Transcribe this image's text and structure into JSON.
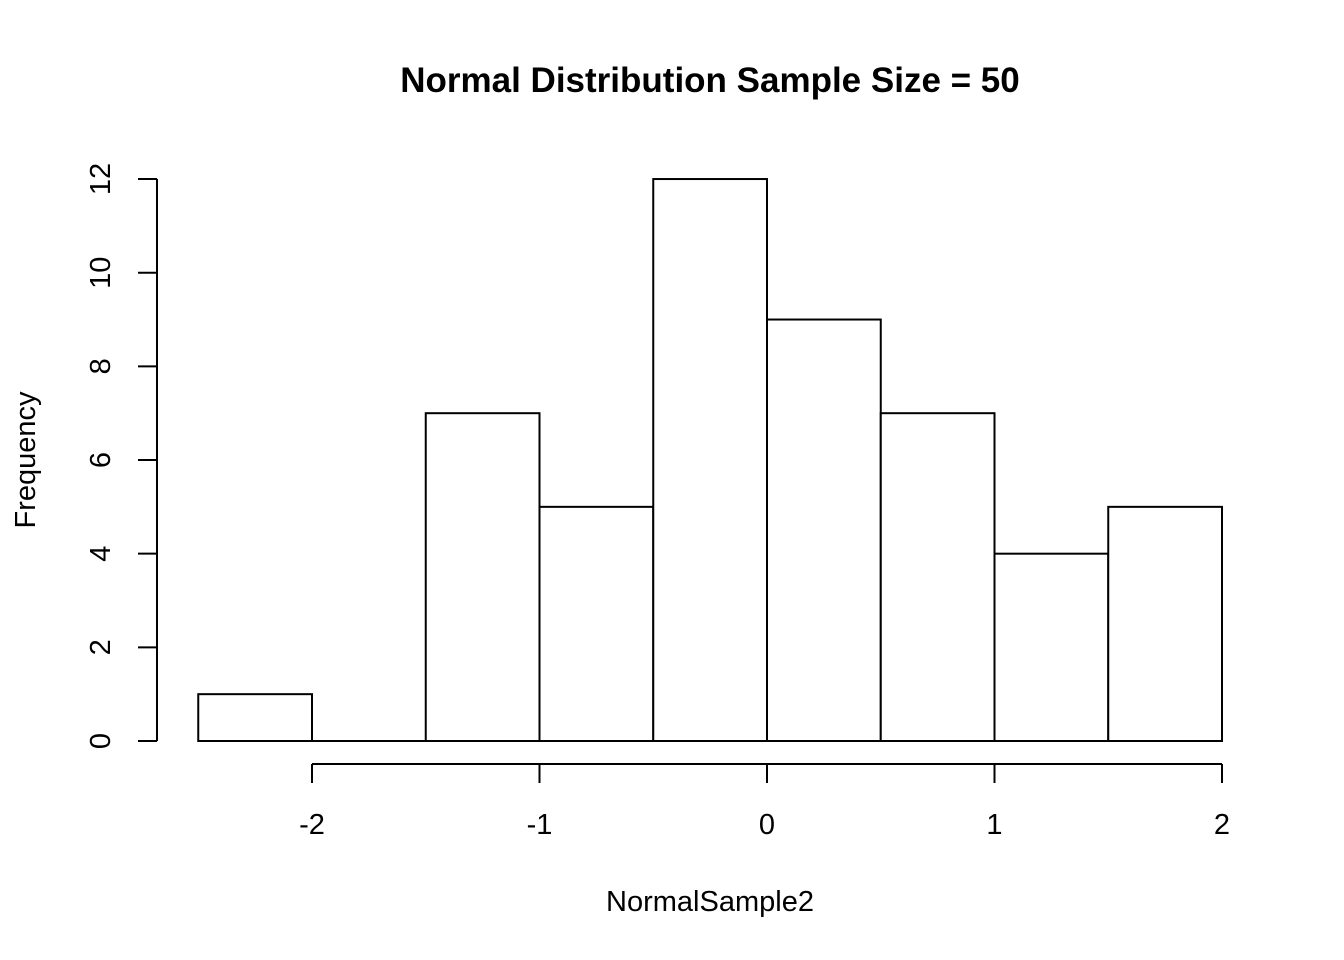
{
  "chart_data": {
    "type": "bar",
    "title": "Normal Distribution Sample Size =  50",
    "xlabel": "NormalSample2",
    "ylabel": "Frequency",
    "bins": [
      {
        "from": -2.5,
        "to": -2.0,
        "count": 1
      },
      {
        "from": -2.0,
        "to": -1.5,
        "count": 0
      },
      {
        "from": -1.5,
        "to": -1.0,
        "count": 7
      },
      {
        "from": -1.0,
        "to": -0.5,
        "count": 5
      },
      {
        "from": -0.5,
        "to": 0.0,
        "count": 12
      },
      {
        "from": 0.0,
        "to": 0.5,
        "count": 9
      },
      {
        "from": 0.5,
        "to": 1.0,
        "count": 7
      },
      {
        "from": 1.0,
        "to": 1.5,
        "count": 4
      },
      {
        "from": 1.5,
        "to": 2.0,
        "count": 5
      }
    ],
    "xlim": [
      -2.5,
      2.0
    ],
    "ylim": [
      0,
      12
    ],
    "x_ticks": [
      -2,
      -1,
      0,
      1,
      2
    ],
    "x_tick_labels": [
      "-2",
      "-1",
      "0",
      "1",
      "2"
    ],
    "y_ticks": [
      0,
      2,
      4,
      6,
      8,
      10,
      12
    ],
    "y_tick_labels": [
      "0",
      "2",
      "4",
      "6",
      "8",
      "10",
      "12"
    ],
    "grid": false,
    "legend": "none",
    "bar_fill": "#ffffff",
    "bar_stroke": "#000000"
  }
}
